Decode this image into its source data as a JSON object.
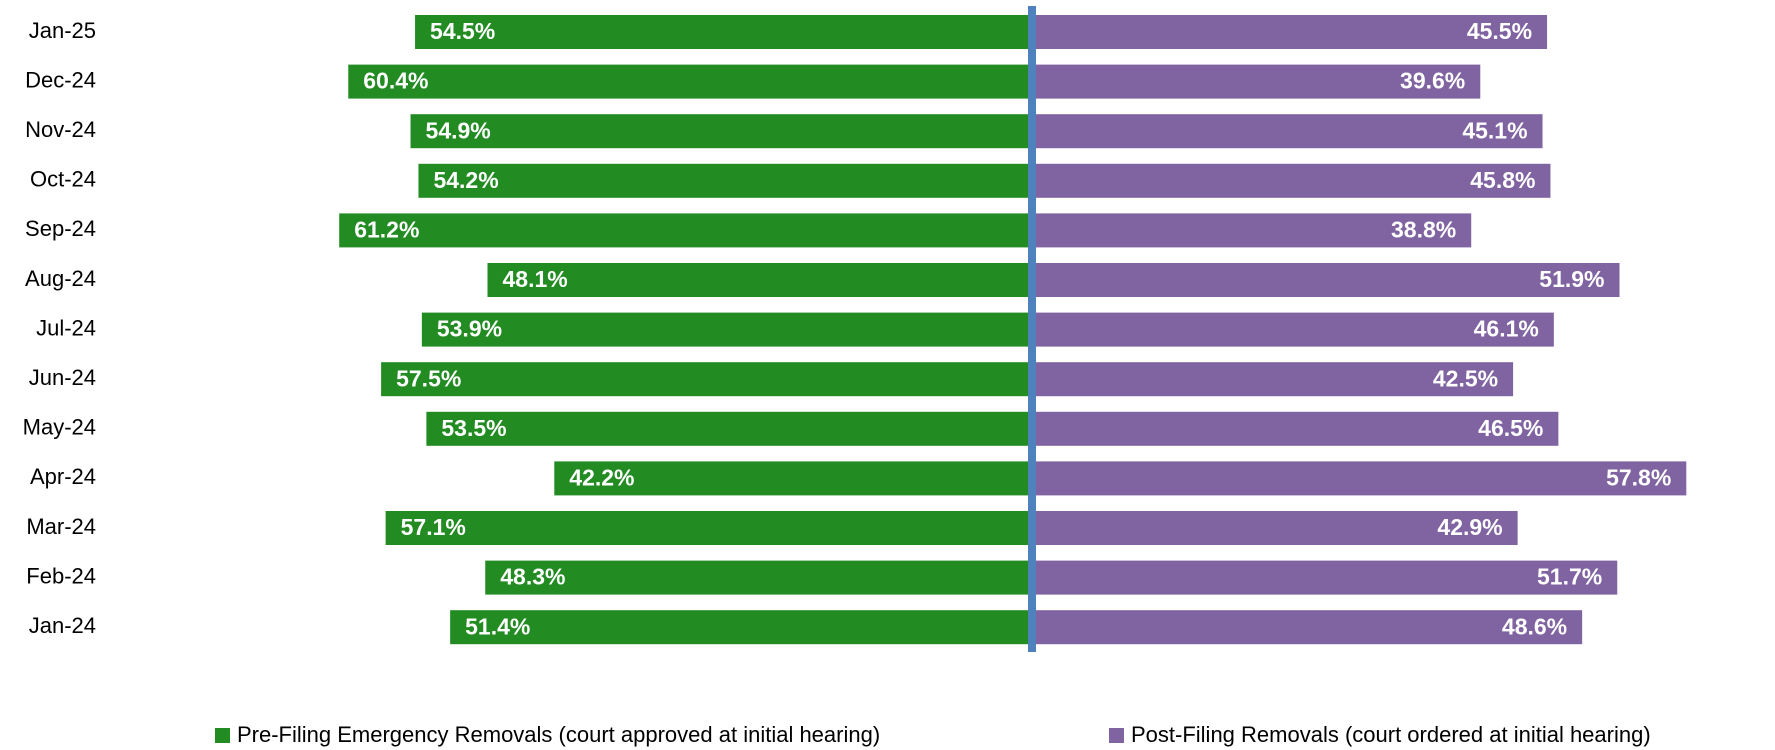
{
  "chart_data": {
    "type": "diverging-bar",
    "categories": [
      "Jan-25",
      "Dec-24",
      "Nov-24",
      "Oct-24",
      "Sep-24",
      "Aug-24",
      "Jul-24",
      "Jun-24",
      "May-24",
      "Apr-24",
      "Mar-24",
      "Feb-24",
      "Jan-24"
    ],
    "series": [
      {
        "name": "Pre-Filing Emergency Removals (court approved at initial hearing)",
        "color": "#228b22",
        "values": [
          54.5,
          60.4,
          54.9,
          54.2,
          61.2,
          48.1,
          53.9,
          57.5,
          53.5,
          42.2,
          57.1,
          48.3,
          51.4
        ],
        "value_labels": [
          "54.5%",
          "60.4%",
          "54.9%",
          "54.2%",
          "61.2%",
          "48.1%",
          "53.9%",
          "57.5%",
          "53.5%",
          "42.2%",
          "57.1%",
          "48.3%",
          "51.4%"
        ]
      },
      {
        "name": "Post-Filing Removals (court ordered at initial hearing)",
        "color": "#8064a2",
        "values": [
          45.5,
          39.6,
          45.1,
          45.8,
          38.8,
          51.9,
          46.1,
          42.5,
          46.5,
          57.8,
          42.9,
          51.7,
          48.6
        ],
        "value_labels": [
          "45.5%",
          "39.6%",
          "45.1%",
          "45.8%",
          "38.8%",
          "51.9%",
          "46.1%",
          "42.5%",
          "46.5%",
          "57.8%",
          "42.9%",
          "51.7%",
          "48.6%"
        ]
      }
    ]
  }
}
